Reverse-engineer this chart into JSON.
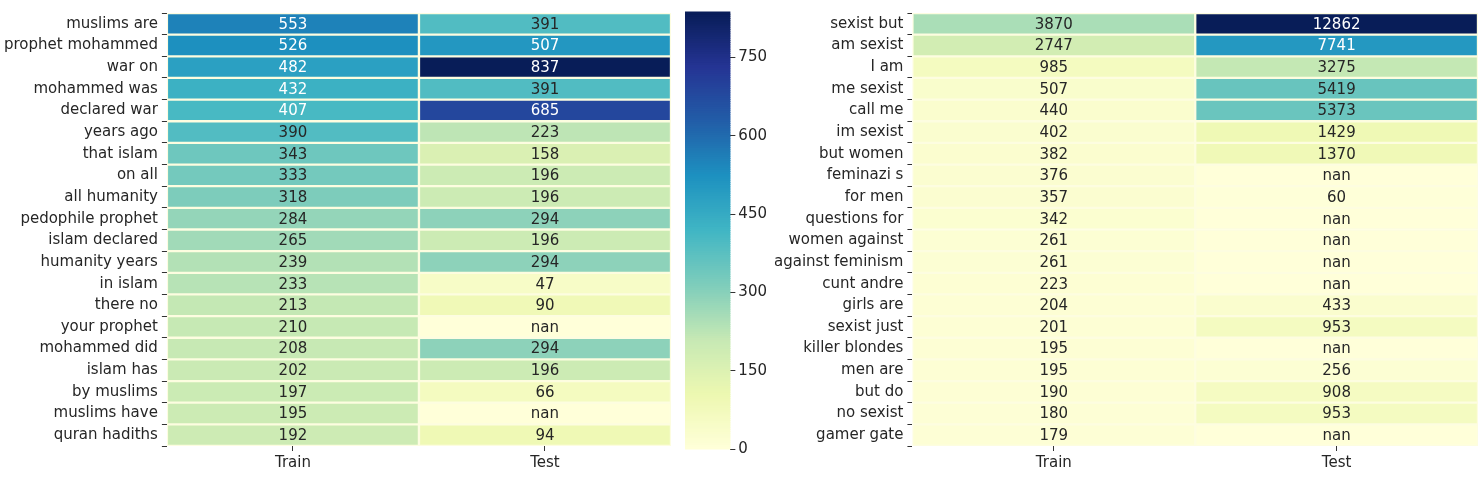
{
  "chart_data": [
    {
      "type": "heatmap",
      "categories": [
        "Train",
        "Test"
      ],
      "y_categories": [
        "muslims are",
        "prophet mohammed",
        "war on",
        "mohammed was",
        "declared war",
        "years ago",
        "that islam",
        "on all",
        "all humanity",
        "pedophile prophet",
        "islam declared",
        "humanity years",
        "in islam",
        "there no",
        "your prophet",
        "mohammed did",
        "islam has",
        "by muslims",
        "muslims have",
        "quran hadiths"
      ],
      "cells": [
        [
          553,
          391
        ],
        [
          526,
          507
        ],
        [
          482,
          837
        ],
        [
          432,
          391
        ],
        [
          407,
          685
        ],
        [
          390,
          223
        ],
        [
          343,
          158
        ],
        [
          333,
          196
        ],
        [
          318,
          196
        ],
        [
          284,
          294
        ],
        [
          265,
          196
        ],
        [
          239,
          294
        ],
        [
          233,
          47
        ],
        [
          213,
          90
        ],
        [
          210,
          null
        ],
        [
          208,
          294
        ],
        [
          202,
          196
        ],
        [
          197,
          66
        ],
        [
          195,
          null
        ],
        [
          192,
          94
        ]
      ],
      "cell_labels": [
        [
          "553",
          "391"
        ],
        [
          "526",
          "507"
        ],
        [
          "482",
          "837"
        ],
        [
          "432",
          "391"
        ],
        [
          "407",
          "685"
        ],
        [
          "390",
          "223"
        ],
        [
          "343",
          "158"
        ],
        [
          "333",
          "196"
        ],
        [
          "318",
          "196"
        ],
        [
          "284",
          "294"
        ],
        [
          "265",
          "196"
        ],
        [
          "239",
          "294"
        ],
        [
          "233",
          "47"
        ],
        [
          "213",
          "90"
        ],
        [
          "210",
          "nan"
        ],
        [
          "208",
          "294"
        ],
        [
          "202",
          "196"
        ],
        [
          "197",
          "66"
        ],
        [
          "195",
          "nan"
        ],
        [
          "192",
          "94"
        ]
      ],
      "data_labels": true,
      "clim": [
        0,
        837
      ],
      "cticks": [
        0,
        150,
        300,
        450,
        600,
        750
      ]
    },
    {
      "type": "heatmap",
      "categories": [
        "Train",
        "Test"
      ],
      "y_categories": [
        "sexist but",
        "am sexist",
        "I am",
        "me sexist",
        "call me",
        "im sexist",
        "but women",
        "feminazi s",
        "for men",
        "questions for",
        "women against",
        "against feminism",
        "cunt andre",
        "girls are",
        "sexist just",
        "killer blondes",
        "men are",
        "but do",
        "no sexist",
        "gamer gate"
      ],
      "cells": [
        [
          3870,
          12862
        ],
        [
          2747,
          7741
        ],
        [
          985,
          3275
        ],
        [
          507,
          5419
        ],
        [
          440,
          5373
        ],
        [
          402,
          1429
        ],
        [
          382,
          1370
        ],
        [
          376,
          null
        ],
        [
          357,
          60
        ],
        [
          342,
          null
        ],
        [
          261,
          null
        ],
        [
          261,
          null
        ],
        [
          223,
          null
        ],
        [
          204,
          433
        ],
        [
          201,
          953
        ],
        [
          195,
          null
        ],
        [
          195,
          256
        ],
        [
          190,
          908
        ],
        [
          180,
          953
        ],
        [
          179,
          null
        ]
      ],
      "cell_labels": [
        [
          "3870",
          "12862"
        ],
        [
          "2747",
          "7741"
        ],
        [
          "985",
          "3275"
        ],
        [
          "507",
          "5419"
        ],
        [
          "440",
          "5373"
        ],
        [
          "402",
          "1429"
        ],
        [
          "382",
          "1370"
        ],
        [
          "376",
          "nan"
        ],
        [
          "357",
          "60"
        ],
        [
          "342",
          "nan"
        ],
        [
          "261",
          "nan"
        ],
        [
          "261",
          "nan"
        ],
        [
          "223",
          "nan"
        ],
        [
          "204",
          "433"
        ],
        [
          "201",
          "953"
        ],
        [
          "195",
          "nan"
        ],
        [
          "195",
          "256"
        ],
        [
          "190",
          "908"
        ],
        [
          "180",
          "953"
        ],
        [
          "179",
          "nan"
        ]
      ],
      "data_labels": true
    }
  ]
}
